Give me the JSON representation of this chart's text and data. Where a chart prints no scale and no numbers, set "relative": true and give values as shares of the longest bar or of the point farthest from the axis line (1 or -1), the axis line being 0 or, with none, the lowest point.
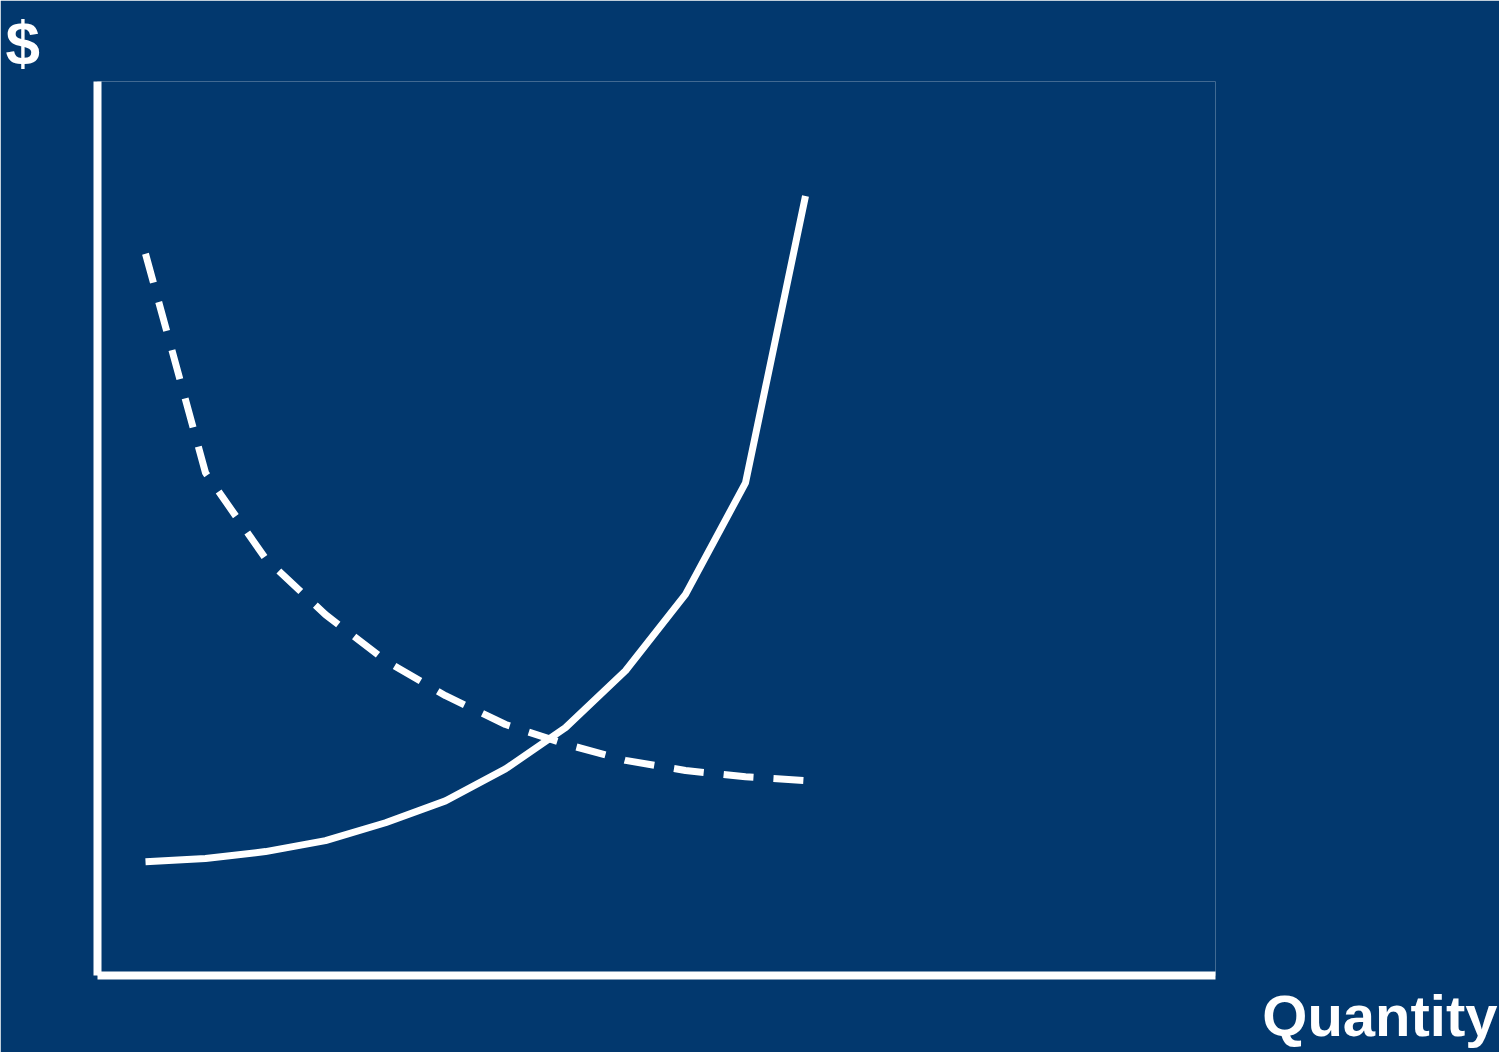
{
  "chart_data": {
    "type": "line",
    "relative": true,
    "annotations": [
      "Quantity"
    ],
    "ylabel": "$",
    "categories": [
      null,
      null,
      null,
      null,
      null,
      null,
      null,
      null,
      null,
      null,
      null,
      null
    ],
    "series": [
      {
        "color": "#ffffff",
        "line_style": "solid",
        "values": [
          0.146,
          0.15,
          0.159,
          0.173,
          0.196,
          0.224,
          0.265,
          0.318,
          0.391,
          0.489,
          0.632,
          1.0
        ]
      },
      {
        "color": "#ffffff",
        "line_style": "dashed",
        "values": [
          0.926,
          0.645,
          0.535,
          0.463,
          0.404,
          0.359,
          0.322,
          0.297,
          0.276,
          0.263,
          0.255,
          0.25
        ]
      }
    ]
  }
}
